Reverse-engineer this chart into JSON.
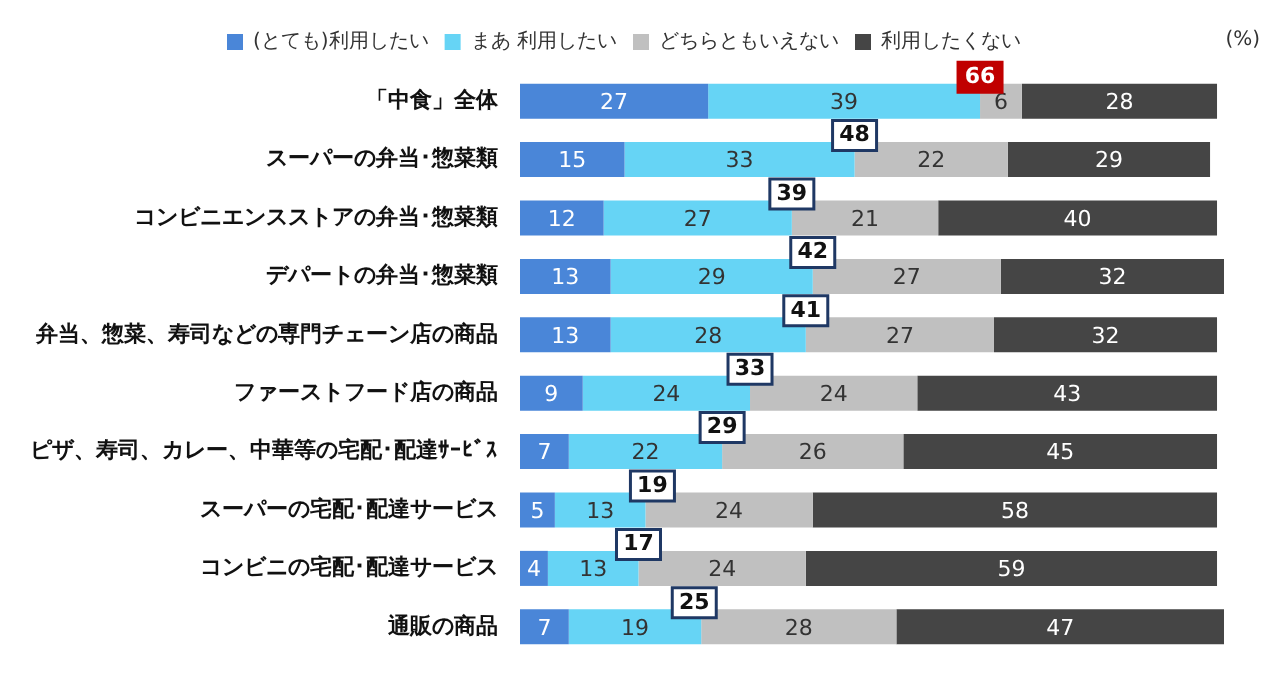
{
  "chart_data": {
    "type": "bar",
    "orientation": "horizontal",
    "stacked": true,
    "data_labels": true,
    "legend": "top",
    "tick_labels": "y",
    "grid": false,
    "xlim": [
      0,
      101
    ],
    "categories": [
      "「中食」全体",
      "スーパーの弁当･惣菜類",
      "コンビニエンスストアの弁当･惣菜類",
      "デパートの弁当･惣菜類",
      "弁当、惣菜、寿司などの専門チェーン店の商品",
      "ファーストフード店の商品",
      "ピザ、寿司、カレー、中華等の宅配･配達ｻｰﾋﾞｽ",
      "スーパーの宅配･配達サービス",
      "コンビニの宅配･配達サービス",
      "通販の商品"
    ],
    "series": [
      {
        "name": "(とても)利用したい",
        "color": "#4a86d8",
        "values": [
          27,
          15,
          12,
          13,
          13,
          9,
          7,
          5,
          4,
          7
        ]
      },
      {
        "name": "まあ 利用したい",
        "color": "#66d4f5",
        "values": [
          39,
          33,
          27,
          29,
          28,
          24,
          22,
          13,
          13,
          19
        ]
      },
      {
        "name": "どちらともいえない",
        "color": "#c0c0c0",
        "values": [
          6,
          22,
          21,
          27,
          27,
          24,
          26,
          24,
          24,
          28
        ]
      },
      {
        "name": "利用したくない",
        "color": "#454545",
        "values": [
          28,
          29,
          40,
          32,
          32,
          43,
          45,
          58,
          59,
          47
        ]
      }
    ],
    "annotations": [
      "(%)",
      {
        "text": "66",
        "x": 66,
        "y": "「中食」全体"
      },
      {
        "text": "48",
        "x": 48,
        "y": "スーパーの弁当･惣菜類"
      },
      {
        "text": "39",
        "x": 39,
        "y": "コンビニエンスストアの弁当･惣菜類"
      },
      {
        "text": "42",
        "x": 42,
        "y": "デパートの弁当･惣菜類"
      },
      {
        "text": "41",
        "x": 41,
        "y": "弁当、惣菜、寿司などの専門チェーン店の商品"
      },
      {
        "text": "33",
        "x": 33,
        "y": "ファーストフード店の商品"
      },
      {
        "text": "29",
        "x": 29,
        "y": "ピザ、寿司、カレー、中華等の宅配･配達ｻｰﾋﾞｽ"
      },
      {
        "text": "19",
        "x": 19,
        "y": "スーパーの宅配･配達サービス"
      },
      {
        "text": "17",
        "x": 17,
        "y": "コンビニの宅配･配達サービス"
      },
      {
        "text": "25",
        "x": 25,
        "y": "通販の商品"
      }
    ]
  }
}
